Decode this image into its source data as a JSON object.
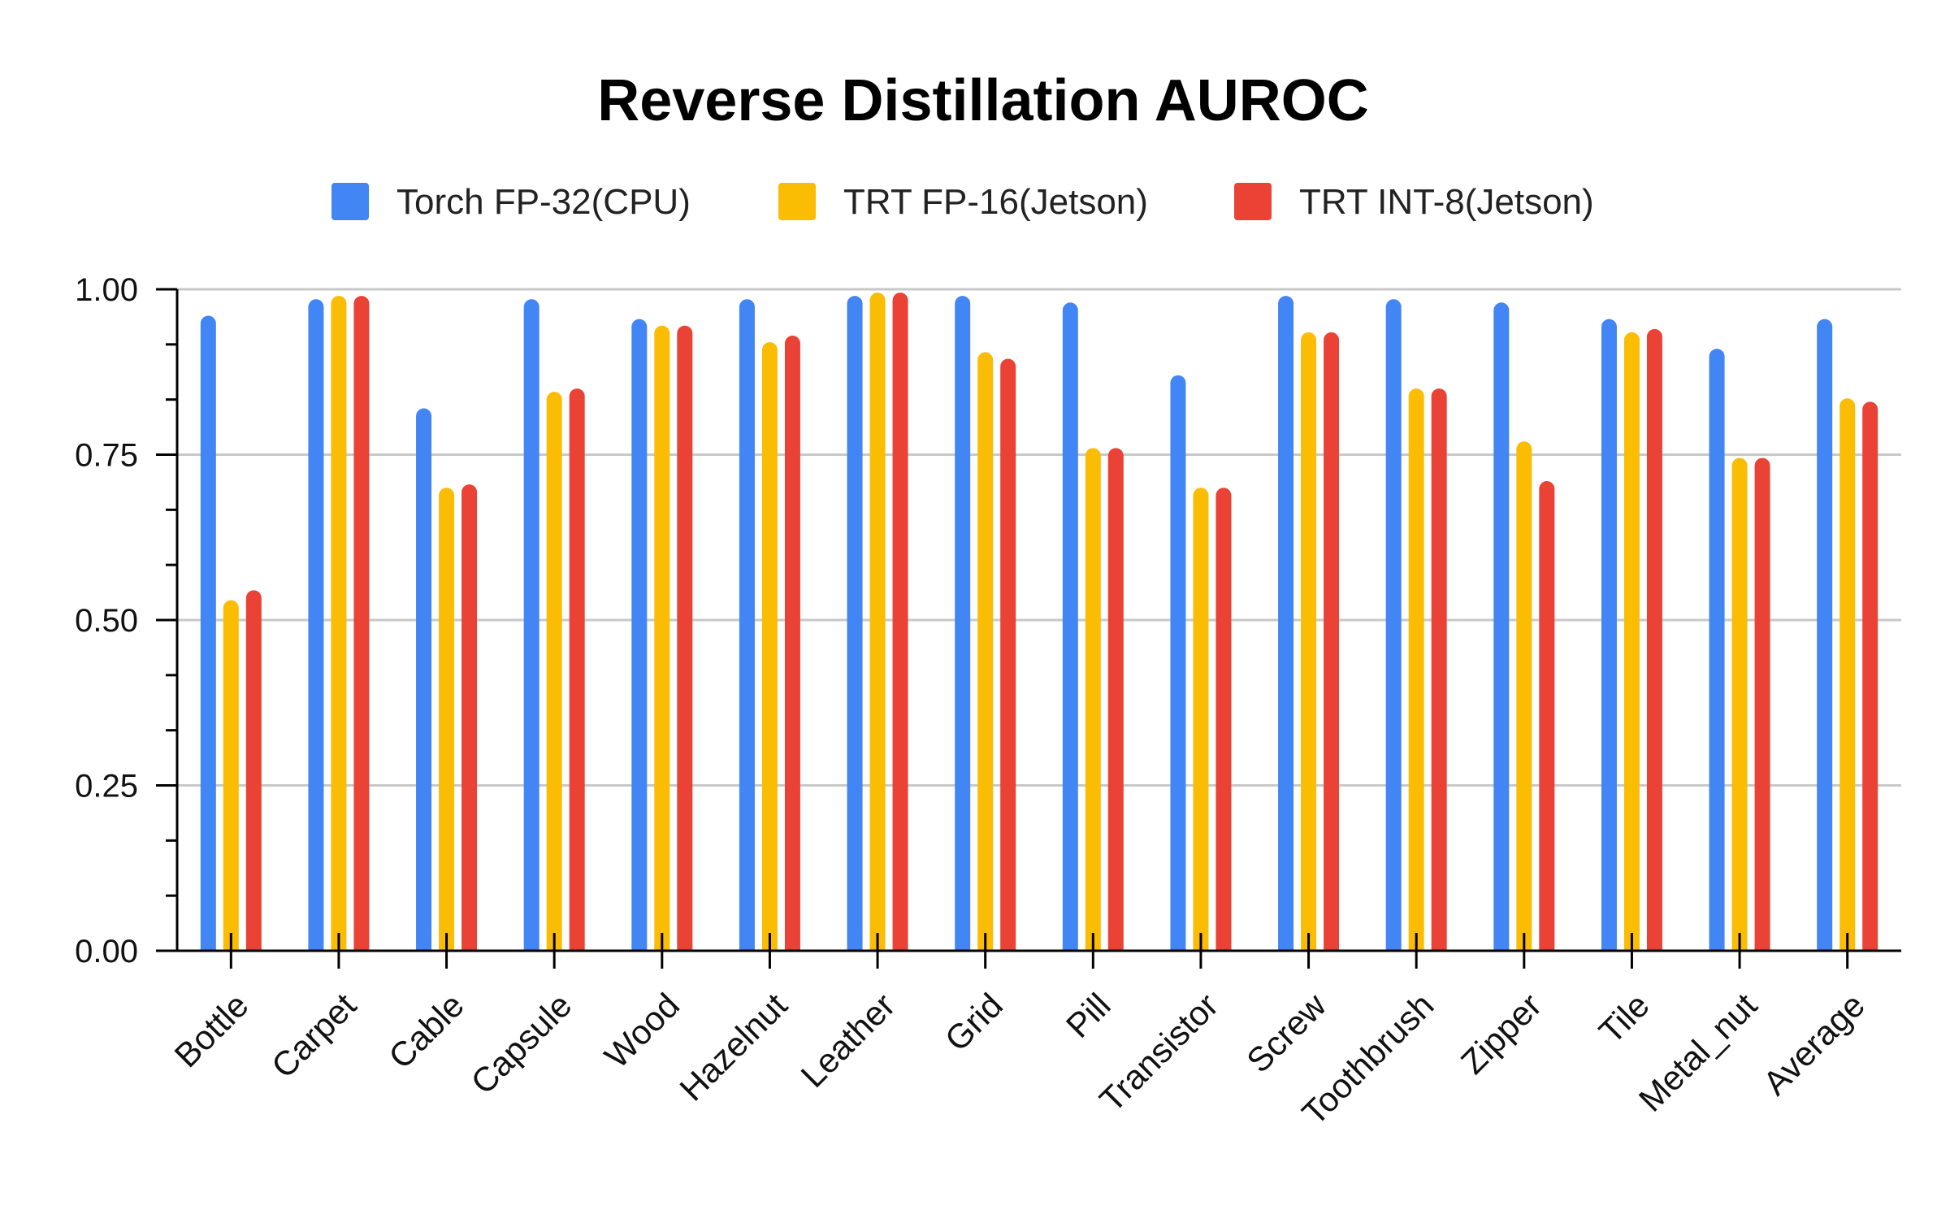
{
  "chart_data": {
    "type": "bar",
    "title": "Reverse Distillation AUROC",
    "xlabel": "",
    "ylabel": "",
    "ylim": [
      0,
      1
    ],
    "yticks": [
      "0.00",
      "0.25",
      "0.50",
      "0.75",
      "1.00"
    ],
    "legend_position": "top-center",
    "grid": true,
    "categories": [
      "Bottle",
      "Carpet",
      "Cable",
      "Capsule",
      "Wood",
      "Hazelnut",
      "Leather",
      "Grid",
      "Pill",
      "Transistor",
      "Screw",
      "Toothbrush",
      "Zipper",
      "Tile",
      "Metal_nut",
      "Average"
    ],
    "series": [
      {
        "name": "Torch FP-32(CPU)",
        "color": "#4285F4",
        "values": [
          0.96,
          0.985,
          0.82,
          0.985,
          0.955,
          0.985,
          0.99,
          0.99,
          0.98,
          0.87,
          0.99,
          0.985,
          0.98,
          0.955,
          0.91,
          0.955
        ]
      },
      {
        "name": "TRT FP-16(Jetson)",
        "color": "#FBBC04",
        "values": [
          0.53,
          0.99,
          0.7,
          0.845,
          0.945,
          0.92,
          0.995,
          0.905,
          0.76,
          0.7,
          0.935,
          0.85,
          0.77,
          0.935,
          0.745,
          0.835
        ]
      },
      {
        "name": "TRT INT-8(Jetson)",
        "color": "#EA4335",
        "values": [
          0.545,
          0.99,
          0.705,
          0.85,
          0.945,
          0.93,
          0.995,
          0.895,
          0.76,
          0.7,
          0.935,
          0.85,
          0.71,
          0.94,
          0.745,
          0.83
        ]
      }
    ]
  }
}
